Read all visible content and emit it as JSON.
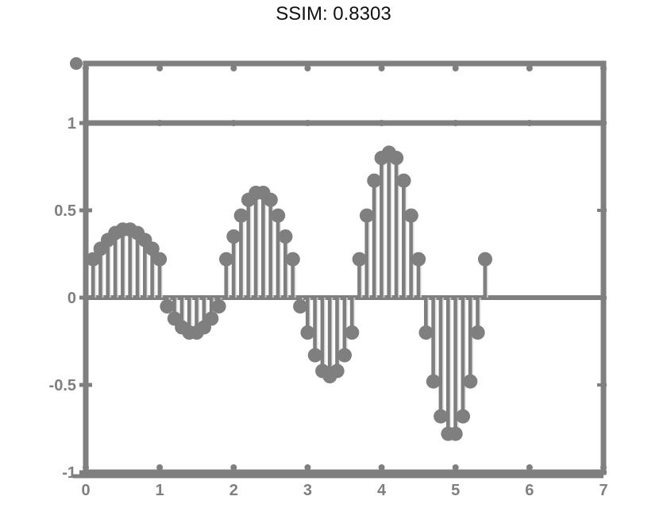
{
  "title": "SSIM: 0.8303",
  "chart_data": {
    "type": "stem",
    "title": "SSIM: 0.8303",
    "xlabel": "",
    "ylabel": "",
    "xlim": [
      0,
      7
    ],
    "ylim": [
      -1,
      1
    ],
    "x_ticks": [
      "0",
      "1",
      "2",
      "3",
      "4",
      "5",
      "6",
      "7"
    ],
    "y_ticks": [
      "-1",
      "-0.5",
      "0",
      "0.5",
      "1"
    ],
    "grid": false,
    "legend": "none",
    "series": [
      {
        "values": [
          0.22,
          0.28,
          0.33,
          0.37,
          0.39,
          0.39,
          0.37,
          0.33,
          0.28,
          0.22,
          -0.05,
          -0.12,
          -0.17,
          -0.2,
          -0.2,
          -0.17,
          -0.12,
          -0.05,
          0.22,
          0.35,
          0.47,
          0.56,
          0.6,
          0.6,
          0.56,
          0.47,
          0.35,
          0.22,
          -0.05,
          -0.2,
          -0.33,
          -0.42,
          -0.45,
          -0.42,
          -0.33,
          -0.2,
          0.22,
          0.47,
          0.67,
          0.8,
          0.83,
          0.8,
          0.67,
          0.47,
          0.22,
          -0.2,
          -0.48,
          -0.68,
          -0.78,
          -0.78,
          -0.68,
          -0.48,
          -0.2,
          0.22
        ],
        "x_start": 0.1,
        "x_step": 0.1,
        "color": "#7f7f7f"
      }
    ]
  },
  "colors": {
    "axes": "#7f7f7f",
    "stem": "#7f7f7f",
    "stem_highlight": "#e0e0e0",
    "background": "#ffffff"
  }
}
